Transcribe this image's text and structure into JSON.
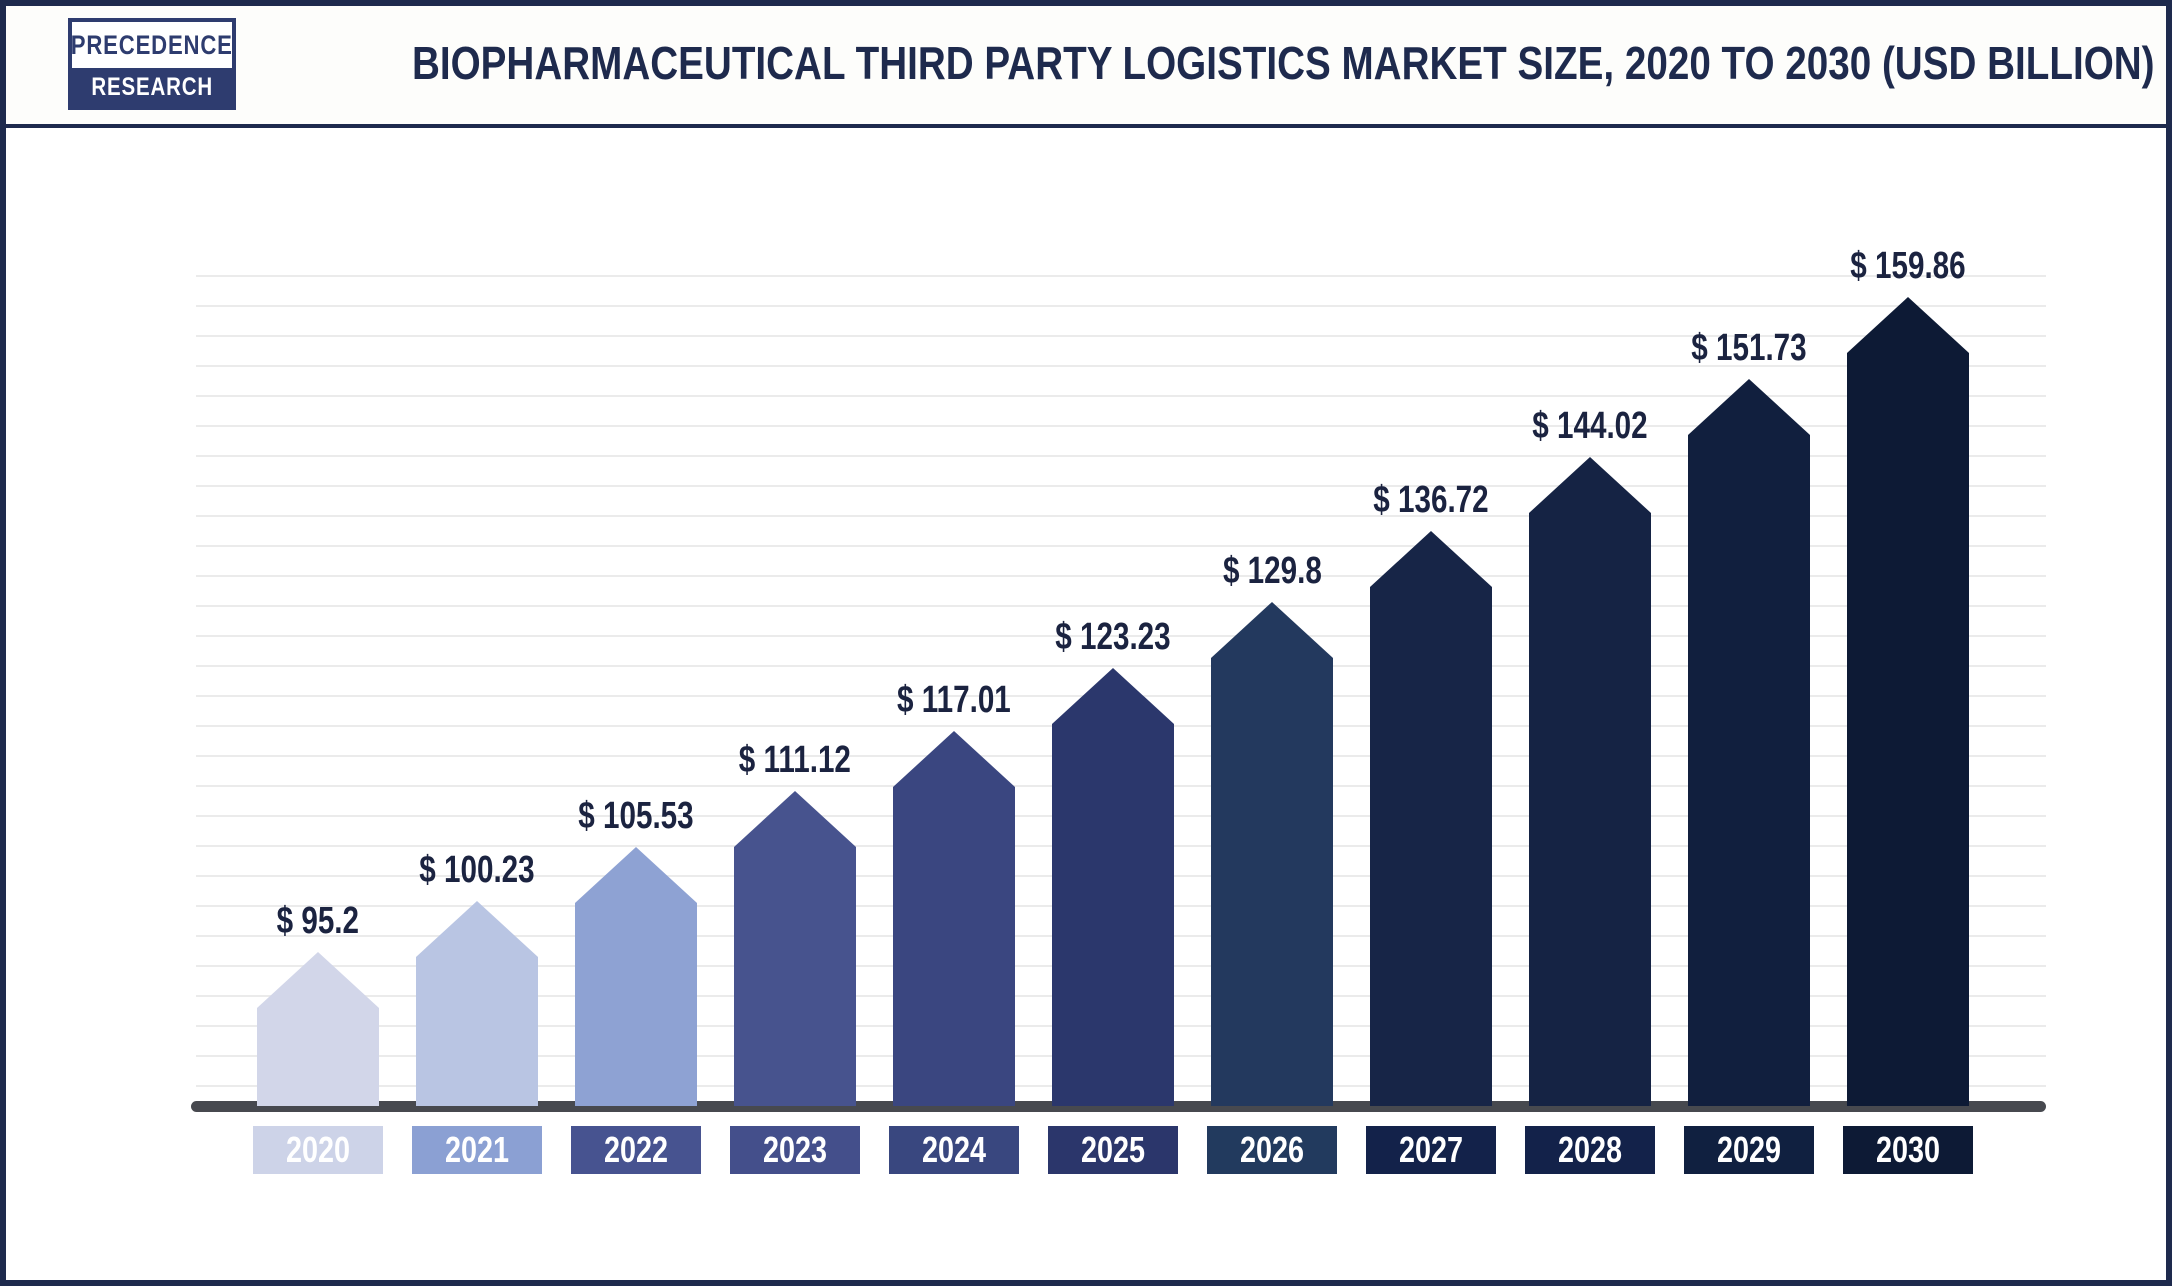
{
  "page": {
    "background": "#ffffff",
    "border_color": "#1e2a4d"
  },
  "logo": {
    "line1": "PRECEDENCE",
    "line2": "RESEARCH",
    "navy": "#2e3c6f"
  },
  "header": {
    "title": "BIOPHARMACEUTICAL THIRD PARTY LOGISTICS MARKET SIZE, 2020 TO 2030 (USD BILLION)"
  },
  "chart_data": {
    "type": "bar",
    "title": "Biopharmaceutical Third Party Logistics Market Size, 2020 to 2030 (USD Billion)",
    "unit": "USD Billion",
    "categories": [
      "2020",
      "2021",
      "2022",
      "2023",
      "2024",
      "2025",
      "2026",
      "2027",
      "2028",
      "2029",
      "2030"
    ],
    "values": [
      95.2,
      100.23,
      105.53,
      111.12,
      117.01,
      123.23,
      129.8,
      136.72,
      144.02,
      151.73,
      159.86
    ],
    "value_labels": [
      "$ 95.2",
      "$ 100.23",
      "$ 105.53",
      "$ 111.12",
      "$ 117.01",
      "$ 123.23",
      "$ 129.8",
      "$ 136.72",
      "$ 144.02",
      "$ 151.73",
      "$ 159.86"
    ],
    "bar_colors": [
      "#d2d6e9",
      "#b9c5e3",
      "#8ea2d3",
      "#47538e",
      "#3a4680",
      "#2b376c",
      "#23395e",
      "#172547",
      "#152344",
      "#111f3e",
      "#0d1a35"
    ],
    "year_box_colors": [
      "#cdd3e8",
      "#8ba0d3",
      "#475390",
      "#444f8b",
      "#39477f",
      "#2b366b",
      "#223a5e",
      "#13224a",
      "#13224a",
      "#102040",
      "#0d1a35"
    ],
    "ylim": [
      80,
      165
    ],
    "grid": "horizontal-light",
    "legend": "none",
    "axis_line_color": "#47494f",
    "gridline_color": "#ebebeb",
    "value_text_color": "#1b2340",
    "year_text_color": "#ffffff"
  }
}
